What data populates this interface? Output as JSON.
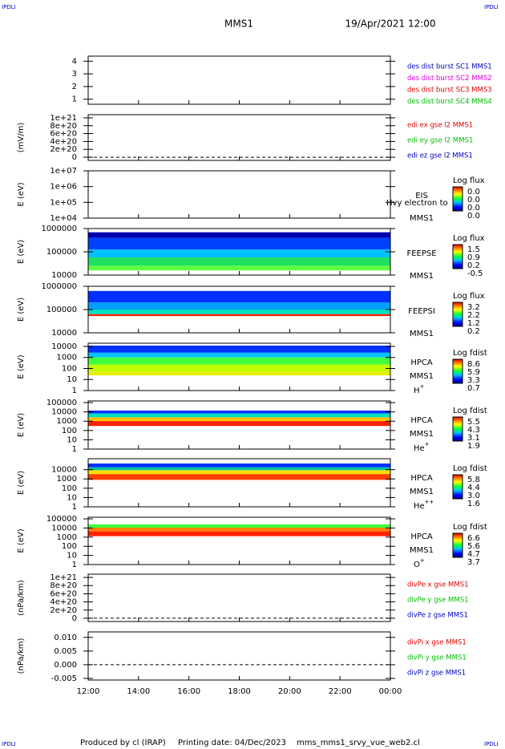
{
  "corner_left": "IPDLI",
  "corner_right": "IPDLI",
  "title": "MMS1",
  "date": "19/Apr/2021 12:00",
  "xticks": [
    "12:00",
    "14:00",
    "16:00",
    "18:00",
    "20:00",
    "22:00",
    "00:00"
  ],
  "footer": [
    "Produced by cl (IRAP)",
    "Printing date: 04/Dec/2023",
    "mms_mms1_srvy_vue_web2.cl"
  ],
  "chart_data": [
    {
      "type": "line",
      "ylim": [
        0.6,
        4.4
      ],
      "yticks": [
        1,
        2,
        3,
        4
      ],
      "legend": [
        {
          "text": "des dist burst SC1 MMS1",
          "color": "#0000c0"
        },
        {
          "text": "des dist burst SC2 MMS2",
          "color": "#e000e0"
        },
        {
          "text": "des dist burst SC3 MMS3",
          "color": "#e00000"
        },
        {
          "text": "des dist burst SC4 MMS4",
          "color": "#00c000"
        }
      ]
    },
    {
      "type": "line",
      "ylabel": "(mV/m)",
      "ylim": [
        -8e+19,
        1.08e+21
      ],
      "zero_line": true,
      "yticks": [
        {
          "value": 1e+21,
          "label": "1e+21"
        },
        {
          "value": 8e+20,
          "label": "8e+20"
        },
        {
          "value": 6e+20,
          "label": "6e+20"
        },
        {
          "value": 4e+20,
          "label": "4e+20"
        },
        {
          "value": 2e+20,
          "label": "2e+20"
        },
        0
      ],
      "legend": [
        {
          "text": "edi ex gse l2 MMS1",
          "color": "#e00000"
        },
        {
          "text": "edi ey gse l2 MMS1",
          "color": "#00c000"
        },
        {
          "text": "edi ez gse l2 MMS1",
          "color": "#0000c0"
        }
      ]
    },
    {
      "type": "spectrogram",
      "ylabel": "E (eV)",
      "log": true,
      "ylim": [
        10000.0,
        10000000.0
      ],
      "yticks": [
        {
          "value": 10000000.0,
          "label": "1e+07"
        },
        {
          "value": 1000000.0,
          "label": "1e+06"
        },
        {
          "value": 100000.0,
          "label": "1e+05"
        },
        {
          "value": 10000.0,
          "label": "1e+04"
        }
      ],
      "instrument": [
        "EIS",
        "MMS1"
      ],
      "overlay": "Hvy electron to",
      "colorbar": {
        "title": "Log flux",
        "labels": [
          "0.0",
          "0.0",
          "0.0",
          "0.0"
        ]
      }
    },
    {
      "type": "spectrogram",
      "ylabel": "E (eV)",
      "log": true,
      "ylim": [
        10000.0,
        1000000.0
      ],
      "yticks": [
        1000000,
        100000,
        10000
      ],
      "instrument": [
        "FEEPSE",
        "MMS1"
      ],
      "colorbar": {
        "title": "Log flux",
        "labels": [
          "1.5",
          "0.9",
          "0.2",
          "-0.5"
        ]
      }
    },
    {
      "type": "spectrogram",
      "ylabel": "E (eV)",
      "log": true,
      "ylim": [
        10000.0,
        1000000.0
      ],
      "yticks": [
        1000000,
        100000,
        10000
      ],
      "instrument": [
        "FEEPSI",
        "MMS1"
      ],
      "colorbar": {
        "title": "Log flux",
        "labels": [
          "3.2",
          "2.2",
          "1.2",
          "0.2"
        ]
      }
    },
    {
      "type": "spectrogram",
      "ylabel": "E (eV)",
      "log": true,
      "ylim": [
        1,
        19500
      ],
      "yticks": [
        10000,
        1000,
        100,
        10,
        1
      ],
      "instrument": [
        "HPCA",
        "MMS1"
      ],
      "species": "H",
      "charge": "+",
      "colorbar": {
        "title": "Log fdist",
        "labels": [
          "8.6",
          "5.9",
          "3.3",
          "0.7"
        ]
      }
    },
    {
      "type": "spectrogram",
      "ylabel": "E (eV)",
      "log": true,
      "ylim": [
        1,
        150000
      ],
      "yticks": [
        100000,
        10000,
        1000,
        100,
        10,
        1
      ],
      "instrument": [
        "HPCA",
        "MMS1"
      ],
      "species": "He",
      "charge": "+",
      "colorbar": {
        "title": "Log fdist",
        "labels": [
          "5.5",
          "4.3",
          "3.1",
          "1.9"
        ]
      }
    },
    {
      "type": "spectrogram",
      "ylabel": "E (eV)",
      "log": true,
      "ylim": [
        1,
        150000
      ],
      "yticks": [
        10000,
        1000,
        100,
        10,
        1
      ],
      "instrument": [
        "HPCA",
        "MMS1"
      ],
      "species": "He",
      "charge": "++",
      "colorbar": {
        "title": "Log fdist",
        "labels": [
          "5.8",
          "4.4",
          "3.0",
          "1.6"
        ]
      }
    },
    {
      "type": "spectrogram",
      "ylabel": "E (eV)",
      "log": true,
      "ylim": [
        1,
        150000
      ],
      "yticks": [
        100000,
        10000,
        1000,
        100,
        10,
        1
      ],
      "instrument": [
        "HPCA",
        "MMS1"
      ],
      "species": "O",
      "charge": "+",
      "colorbar": {
        "title": "Log fdist",
        "labels": [
          "6.6",
          "5.6",
          "4.7",
          "3.7"
        ]
      }
    },
    {
      "type": "line",
      "ylabel": "(nPa/km)",
      "ylim": [
        -8e+19,
        1.08e+21
      ],
      "zero_line": true,
      "yticks": [
        {
          "value": 1e+21,
          "label": "1e+21"
        },
        {
          "value": 8e+20,
          "label": "8e+20"
        },
        {
          "value": 6e+20,
          "label": "6e+20"
        },
        {
          "value": 4e+20,
          "label": "4e+20"
        },
        {
          "value": 2e+20,
          "label": "2e+20"
        },
        0
      ],
      "legend": [
        {
          "text": "divPe x gse MMS1",
          "color": "#e00000"
        },
        {
          "text": "divPe y gse MMS1",
          "color": "#00c000"
        },
        {
          "text": "divPe z gse MMS1",
          "color": "#0000c0"
        }
      ]
    },
    {
      "type": "line",
      "ylabel": "(nPa/km)",
      "ylim": [
        -0.0056,
        0.012
      ],
      "zero_line": true,
      "yticks": [
        {
          "value": 0.01,
          "label": "0.010"
        },
        {
          "value": 0.005,
          "label": "0.005"
        },
        {
          "value": 0,
          "label": "0.000"
        },
        {
          "value": -0.005,
          "label": "-0.005"
        }
      ],
      "legend": [
        {
          "text": "divPi x gse MMS1",
          "color": "#e00000"
        },
        {
          "text": "divPi y gse MMS1",
          "color": "#00c000"
        },
        {
          "text": "divPi z gse MMS1",
          "color": "#0000c0"
        }
      ]
    }
  ]
}
